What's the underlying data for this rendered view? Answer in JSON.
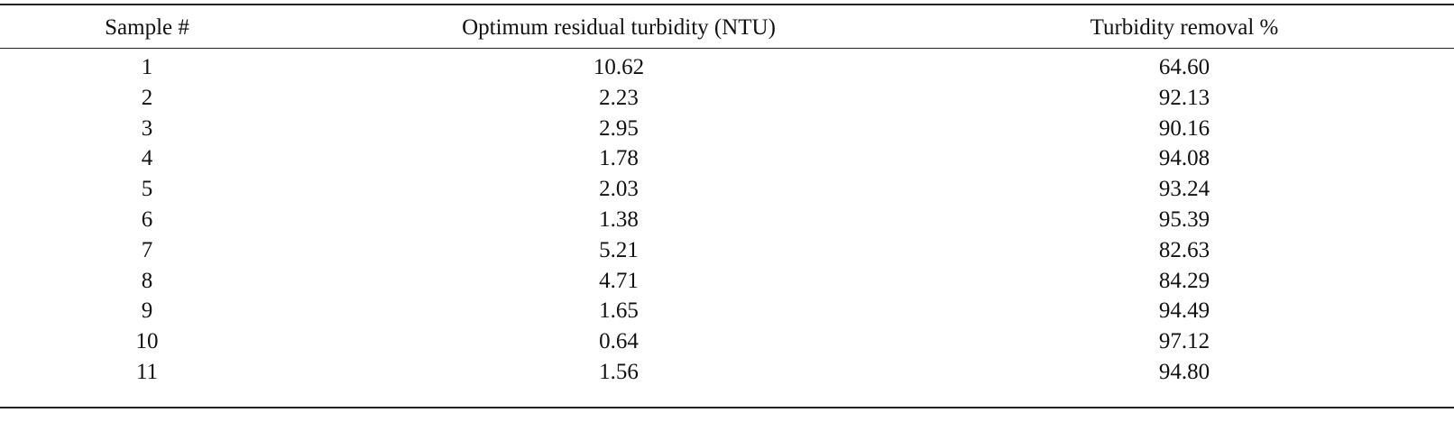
{
  "table": {
    "header": [
      "Sample #",
      "Optimum residual turbidity (NTU)",
      "Turbidity removal %"
    ],
    "rows": [
      [
        "1",
        "10.62",
        "64.60"
      ],
      [
        "2",
        "2.23",
        "92.13"
      ],
      [
        "3",
        "2.95",
        "90.16"
      ],
      [
        "4",
        "1.78",
        "94.08"
      ],
      [
        "5",
        "2.03",
        "93.24"
      ],
      [
        "6",
        "1.38",
        "95.39"
      ],
      [
        "7",
        "5.21",
        "82.63"
      ],
      [
        "8",
        "4.71",
        "84.29"
      ],
      [
        "9",
        "1.65",
        "94.49"
      ],
      [
        "10",
        "0.64",
        "97.12"
      ],
      [
        "11",
        "1.56",
        "94.80"
      ]
    ]
  }
}
